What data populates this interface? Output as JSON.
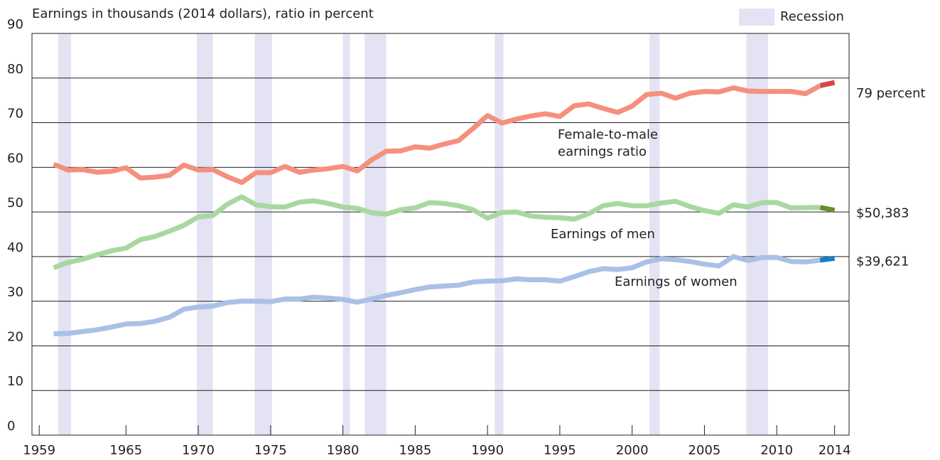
{
  "chart_data": {
    "type": "line",
    "axis_title": "Earnings in thousands (2014 dollars), ratio in percent",
    "x": [
      1960,
      1961,
      1962,
      1963,
      1964,
      1965,
      1966,
      1967,
      1968,
      1969,
      1970,
      1971,
      1972,
      1973,
      1974,
      1975,
      1976,
      1977,
      1978,
      1979,
      1980,
      1981,
      1982,
      1983,
      1984,
      1985,
      1986,
      1987,
      1988,
      1989,
      1990,
      1991,
      1992,
      1993,
      1994,
      1995,
      1996,
      1997,
      1998,
      1999,
      2000,
      2001,
      2002,
      2003,
      2004,
      2005,
      2006,
      2007,
      2008,
      2009,
      2010,
      2011,
      2012,
      2013,
      2014
    ],
    "series": [
      {
        "name": [
          "Female-to-male",
          "earnings ratio"
        ],
        "color": "#f4907e",
        "end_color": "#d9434a",
        "end_label": "79 percent",
        "values": [
          60.7,
          59.4,
          59.5,
          58.9,
          59.1,
          59.9,
          57.6,
          57.8,
          58.2,
          60.5,
          59.4,
          59.5,
          57.9,
          56.6,
          58.8,
          58.8,
          60.2,
          58.9,
          59.4,
          59.7,
          60.2,
          59.2,
          61.7,
          63.6,
          63.7,
          64.6,
          64.3,
          65.2,
          66.0,
          68.7,
          71.6,
          69.9,
          70.8,
          71.5,
          72.0,
          71.4,
          73.8,
          74.2,
          73.2,
          72.3,
          73.7,
          76.3,
          76.6,
          75.5,
          76.6,
          77.0,
          76.9,
          77.8,
          77.1,
          77.0,
          77.0,
          77.0,
          76.5,
          78.3,
          79
        ]
      },
      {
        "name": [
          "Earnings of men"
        ],
        "color": "#a8d8a0",
        "end_color": "#6b8e2f",
        "end_label": "$50,383",
        "values": [
          37.5,
          38.7,
          39.4,
          40.4,
          41.3,
          41.9,
          43.8,
          44.5,
          45.7,
          47.0,
          48.9,
          49.2,
          51.7,
          53.4,
          51.6,
          51.2,
          51.1,
          52.2,
          52.5,
          51.9,
          51.1,
          50.8,
          49.8,
          49.5,
          50.5,
          50.9,
          52.1,
          51.9,
          51.4,
          50.5,
          48.6,
          49.9,
          50.0,
          49.1,
          48.8,
          48.7,
          48.4,
          49.6,
          51.4,
          51.9,
          51.4,
          51.4,
          52.0,
          52.4,
          51.2,
          50.3,
          49.7,
          51.6,
          51.1,
          52.1,
          52.1,
          50.9,
          51.0,
          51.0,
          50.383
        ]
      },
      {
        "name": [
          "Earnings of women"
        ],
        "color": "#a9c1e6",
        "end_color": "#1a7cc4",
        "end_label": "$39,621",
        "values": [
          22.7,
          22.8,
          23.2,
          23.6,
          24.2,
          24.9,
          25.0,
          25.5,
          26.4,
          28.2,
          28.7,
          28.9,
          29.7,
          30.0,
          30.0,
          29.9,
          30.5,
          30.5,
          30.9,
          30.7,
          30.4,
          29.8,
          30.5,
          31.3,
          31.9,
          32.6,
          33.2,
          33.4,
          33.6,
          34.3,
          34.5,
          34.6,
          35.0,
          34.8,
          34.8,
          34.5,
          35.5,
          36.6,
          37.3,
          37.1,
          37.5,
          38.8,
          39.5,
          39.3,
          38.9,
          38.3,
          37.9,
          40.0,
          39.1,
          39.8,
          39.8,
          38.9,
          38.8,
          39.2,
          39.621
        ]
      }
    ],
    "recession_label": "Recession",
    "recession_color": "#e3e3f3",
    "recessions": [
      [
        1960.3,
        1961.2
      ],
      [
        1969.9,
        1971.0
      ],
      [
        1973.9,
        1975.1
      ],
      [
        1980.0,
        1980.5
      ],
      [
        1981.5,
        1983.0
      ],
      [
        1990.5,
        1991.1
      ],
      [
        2001.2,
        2001.9
      ],
      [
        2007.9,
        2009.4
      ]
    ],
    "xlim": [
      1958.5,
      2015
    ],
    "xticks": [
      1959,
      1965,
      1970,
      1975,
      1980,
      1985,
      1990,
      1995,
      2000,
      2005,
      2010,
      2014
    ],
    "ylim": [
      0,
      90
    ],
    "yticks": [
      0,
      10,
      20,
      30,
      40,
      50,
      60,
      70,
      80,
      90
    ],
    "grid": true
  }
}
